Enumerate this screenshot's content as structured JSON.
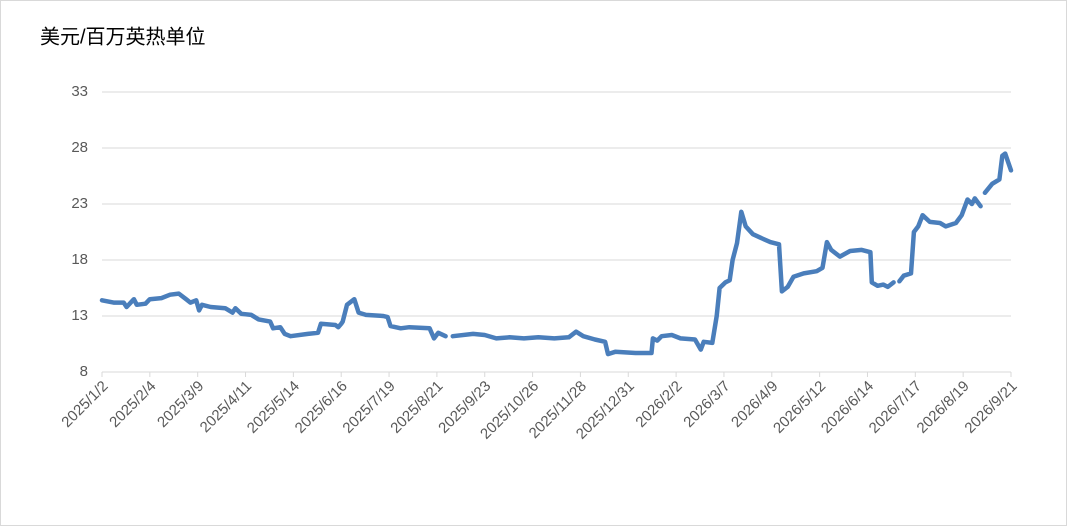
{
  "chart_data": {
    "type": "line",
    "title": "美元/百万英热单位",
    "color": "#4a7ebb",
    "grid": true,
    "ylim": [
      8,
      33
    ],
    "yticks": [
      8,
      13,
      18,
      23,
      28,
      33
    ],
    "xlim": [
      "2025/1/2",
      "2026/9/21"
    ],
    "xticks": [
      "2025/1/2",
      "2025/2/4",
      "2025/3/9",
      "2025/4/11",
      "2025/5/14",
      "2025/6/16",
      "2025/7/19",
      "2025/8/21",
      "2025/9/23",
      "2025/10/26",
      "2025/11/28",
      "2025/12/31",
      "2026/2/2",
      "2026/3/7",
      "2026/4/9",
      "2026/5/12",
      "2026/6/14",
      "2026/7/17",
      "2026/8/19",
      "2026/9/21"
    ],
    "x": [
      "2025/1/2",
      "2025/1/10",
      "2025/1/17",
      "2025/1/19",
      "2025/1/24",
      "2025/1/26",
      "2025/2/1",
      "2025/2/4",
      "2025/2/12",
      "2025/2/18",
      "2025/2/24",
      "2025/3/1",
      "2025/3/4",
      "2025/3/8",
      "2025/3/10",
      "2025/3/12",
      "2025/3/18",
      "2025/3/28",
      "2025/4/2",
      "2025/4/4",
      "2025/4/8",
      "2025/4/15",
      "2025/4/20",
      "2025/4/28",
      "2025/4/30",
      "2025/5/5",
      "2025/5/8",
      "2025/5/12",
      "2025/5/24",
      "2025/5/31",
      "2025/6/2",
      "2025/6/12",
      "2025/6/14",
      "2025/6/16",
      "2025/6/17",
      "2025/6/20",
      "2025/6/25",
      "2025/6/28",
      "2025/7/3",
      "2025/7/15",
      "2025/7/18",
      "2025/7/20",
      "2025/7/27",
      "2025/8/2",
      "2025/8/16",
      "2025/8/19",
      "2025/8/22",
      "2025/8/27",
      "2025/8/30",
      "2025/9/1",
      "2025/9/15",
      "2025/9/23",
      "2025/10/1",
      "2025/10/10",
      "2025/10/20",
      "2025/10/30",
      "2025/11/10",
      "2025/11/20",
      "2025/11/25",
      "2025/11/30",
      "2025/12/8",
      "2025/12/15",
      "2025/12/17",
      "2025/12/22",
      "2026/1/5",
      "2026/1/16",
      "2026/1/17",
      "2026/1/20",
      "2026/1/23",
      "2026/1/30",
      "2026/2/5",
      "2026/2/15",
      "2026/2/19",
      "2026/2/21",
      "2026/2/27",
      "2026/3/2",
      "2026/3/4",
      "2026/3/8",
      "2026/3/11",
      "2026/3/13",
      "2026/3/16",
      "2026/3/19",
      "2026/3/22",
      "2026/3/27",
      "2026/4/1",
      "2026/4/8",
      "2026/4/14",
      "2026/4/16",
      "2026/4/20",
      "2026/4/24",
      "2026/5/1",
      "2026/5/10",
      "2026/5/14",
      "2026/5/17",
      "2026/5/20",
      "2026/5/26",
      "2026/6/2",
      "2026/6/10",
      "2026/6/16",
      "2026/6/17",
      "2026/6/21",
      "2026/6/25",
      "2026/6/28",
      "2026/7/2",
      "2026/7/4",
      "2026/7/6",
      "2026/7/9",
      "2026/7/14",
      "2026/7/16",
      "2026/7/19",
      "2026/7/22",
      "2026/7/27",
      "2026/8/3",
      "2026/8/7",
      "2026/8/14",
      "2026/8/18",
      "2026/8/22",
      "2026/8/25",
      "2026/8/27",
      "2026/8/31",
      "2026/9/1",
      "2026/9/3",
      "2026/9/8",
      "2026/9/13",
      "2026/9/15",
      "2026/9/17",
      "2026/9/21"
    ],
    "values": [
      14.4,
      14.2,
      14.2,
      13.8,
      14.5,
      14.0,
      14.1,
      14.5,
      14.6,
      14.9,
      15.0,
      14.5,
      14.2,
      14.4,
      13.5,
      14.0,
      13.8,
      13.7,
      13.3,
      13.7,
      13.2,
      13.1,
      12.7,
      12.5,
      11.9,
      12.0,
      11.4,
      11.2,
      11.4,
      11.5,
      12.3,
      12.2,
      12.0,
      12.3,
      12.5,
      14.0,
      14.5,
      13.3,
      13.1,
      13.0,
      12.9,
      12.1,
      11.9,
      12.0,
      11.9,
      11.0,
      11.5,
      11.2,
      null,
      11.2,
      11.4,
      11.3,
      11.0,
      11.1,
      11.0,
      11.1,
      11.0,
      11.1,
      11.6,
      11.2,
      10.9,
      10.7,
      9.6,
      9.8,
      9.7,
      9.7,
      11.0,
      10.8,
      11.2,
      11.3,
      11.0,
      10.9,
      10.0,
      10.7,
      10.6,
      13.0,
      15.5,
      16.0,
      16.2,
      18.0,
      19.5,
      22.3,
      21.0,
      20.3,
      20.0,
      19.6,
      19.4,
      15.2,
      15.6,
      16.5,
      16.8,
      17.0,
      17.3,
      19.6,
      18.9,
      18.3,
      18.8,
      18.9,
      18.7,
      16.0,
      15.7,
      15.8,
      15.6,
      16.0,
      null,
      16.1,
      16.6,
      16.8,
      20.5,
      21.0,
      22.0,
      21.4,
      21.3,
      21.0,
      21.3,
      22.0,
      23.4,
      23.0,
      23.5,
      22.8,
      null,
      24.0,
      24.8,
      25.2,
      27.3,
      27.5,
      26.0
    ]
  }
}
